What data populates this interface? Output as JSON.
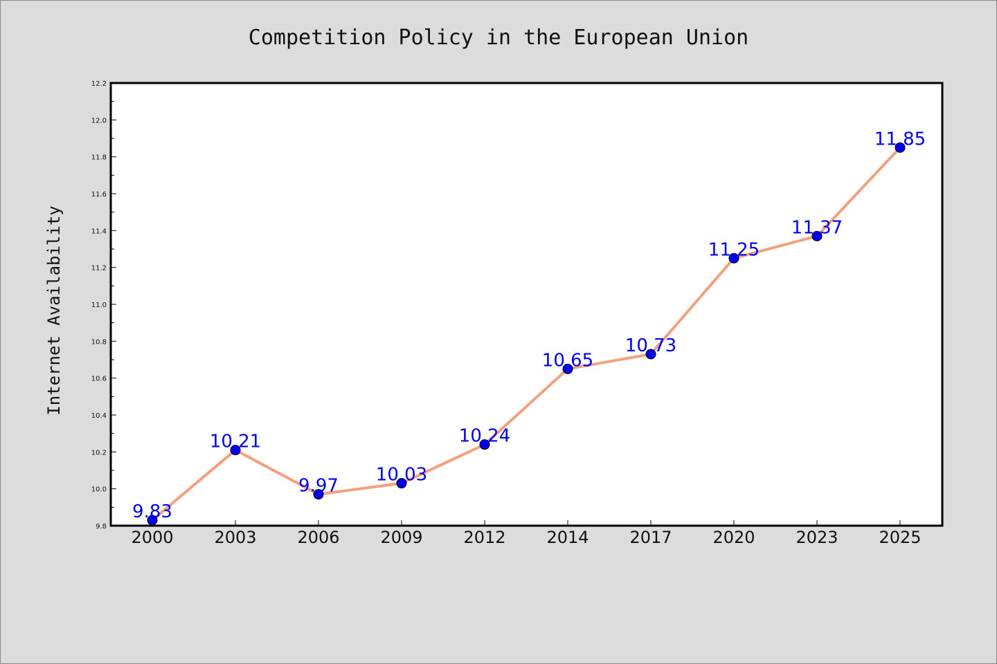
{
  "chart_data": {
    "type": "line",
    "title": "Competition Policy in the European Union",
    "xlabel": "",
    "ylabel": "Internet Availability",
    "categories": [
      "2000",
      "2003",
      "2006",
      "2009",
      "2012",
      "2014",
      "2017",
      "2020",
      "2023",
      "2025"
    ],
    "series": [
      {
        "values": [
          9.83,
          10.21,
          9.97,
          10.03,
          10.24,
          10.65,
          10.73,
          11.25,
          11.37,
          11.85
        ],
        "data_labels": [
          "9.83",
          "10.21",
          "9.97",
          "10.03",
          "10.24",
          "10.65",
          "10.73",
          "11.25",
          "11.37",
          "11.85"
        ]
      }
    ],
    "ylim": [
      9.8,
      12.2
    ],
    "yticks": [
      "9.8",
      "10.0",
      "10.2",
      "10.4",
      "10.6",
      "10.8",
      "11.0",
      "11.2",
      "11.4",
      "11.6",
      "11.8",
      "12.0",
      "12.2"
    ],
    "grid": false,
    "legend": "none",
    "colors": {
      "line": "#f4a07c",
      "marker": "#0000ee",
      "marker_edge": "#000000",
      "data_label": "#0000ee",
      "plot_background": "#ffffff",
      "figure_background": "#dcdcdc"
    }
  }
}
